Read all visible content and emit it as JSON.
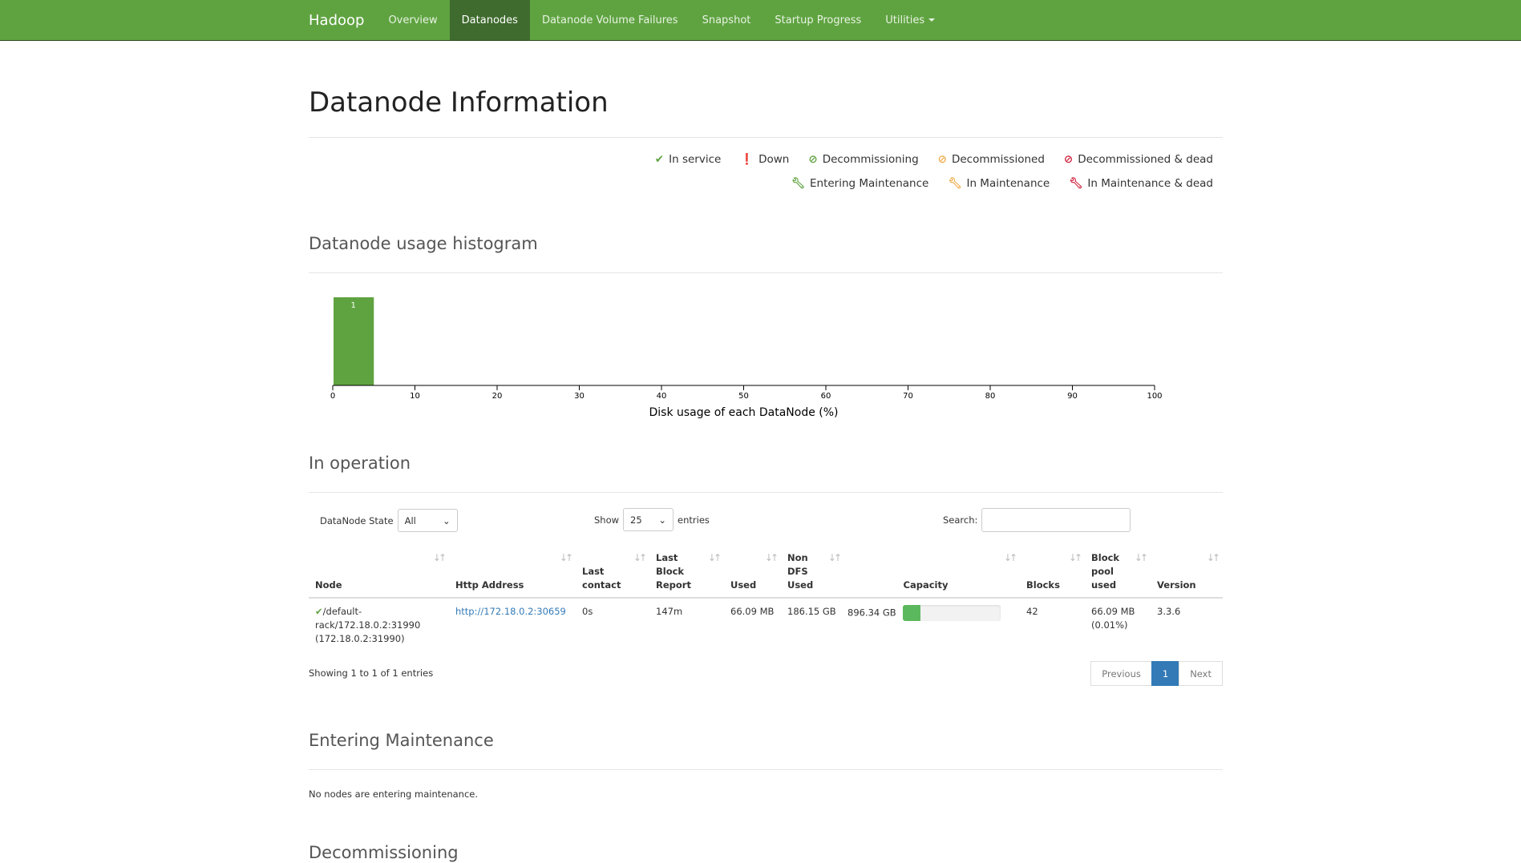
{
  "nav": {
    "brand": "Hadoop",
    "items": [
      {
        "label": "Overview"
      },
      {
        "label": "Datanodes",
        "active": true
      },
      {
        "label": "Datanode Volume Failures"
      },
      {
        "label": "Snapshot"
      },
      {
        "label": "Startup Progress"
      },
      {
        "label": "Utilities"
      }
    ]
  },
  "title": "Datanode Information",
  "legend": {
    "row1": [
      {
        "icon": "check-icon",
        "label": "In service",
        "color": "#5fa341"
      },
      {
        "icon": "exclamation-circle-icon",
        "label": "Down",
        "color": "#d0243f"
      },
      {
        "icon": "ban-icon",
        "label": "Decommissioning",
        "color": "#5fa341"
      },
      {
        "icon": "ban-icon",
        "label": "Decommissioned",
        "color": "#f0ad4e"
      },
      {
        "icon": "ban-icon",
        "label": "Decommissioned & dead",
        "color": "#d0243f"
      }
    ],
    "row2": [
      {
        "icon": "wrench-icon",
        "label": "Entering Maintenance",
        "color": "#5fa341"
      },
      {
        "icon": "wrench-icon",
        "label": "In Maintenance",
        "color": "#f0ad4e"
      },
      {
        "icon": "wrench-icon",
        "label": "In Maintenance & dead",
        "color": "#d0243f"
      }
    ]
  },
  "histogram": {
    "heading": "Datanode usage histogram"
  },
  "chart_data": {
    "type": "bar",
    "bins": [
      {
        "from": 0,
        "to": 5,
        "count": 1
      }
    ],
    "xlabel": "Disk usage of each DataNode (%)",
    "xlim": [
      0,
      100
    ],
    "xticks": [
      "0",
      "10",
      "20",
      "30",
      "40",
      "50",
      "60",
      "70",
      "80",
      "90",
      "100"
    ],
    "bar_color": "#5fa341"
  },
  "operation": {
    "heading": "In operation",
    "state_label": "DataNode State",
    "state_value": "All",
    "show_label": "Show",
    "show_value": "25",
    "entries_label": "entries",
    "search_label": "Search:",
    "search_value": "",
    "columns": [
      [
        "Node"
      ],
      [
        "Http Address"
      ],
      [
        "Last",
        "contact"
      ],
      [
        "Last",
        "Block",
        "Report"
      ],
      [
        "Used"
      ],
      [
        "Non",
        "DFS",
        "Used"
      ],
      [
        "Capacity"
      ],
      [
        "Blocks"
      ],
      [
        "Block",
        "pool",
        "used"
      ],
      [
        "Version"
      ]
    ],
    "rows": [
      {
        "status_icon": "check-icon",
        "node": "/default-rack/172.18.0.2:31990 (172.18.0.2:31990)",
        "http": "http://172.18.0.2:30659",
        "last_contact": "0s",
        "last_block_report": "147m",
        "used": "66.09 MB",
        "non_dfs_used": "186.15 GB",
        "capacity": "896.34 GB",
        "capacity_used_percent": 18,
        "blocks": "42",
        "block_pool_used": "66.09 MB (0.01%)",
        "version": "3.3.6"
      }
    ],
    "info": "Showing 1 to 1 of 1 entries",
    "pagination": {
      "previous": "Previous",
      "page": "1",
      "next": "Next"
    }
  },
  "entering": {
    "heading": "Entering Maintenance",
    "text": "No nodes are entering maintenance."
  },
  "decommissioning": {
    "heading": "Decommissioning"
  }
}
